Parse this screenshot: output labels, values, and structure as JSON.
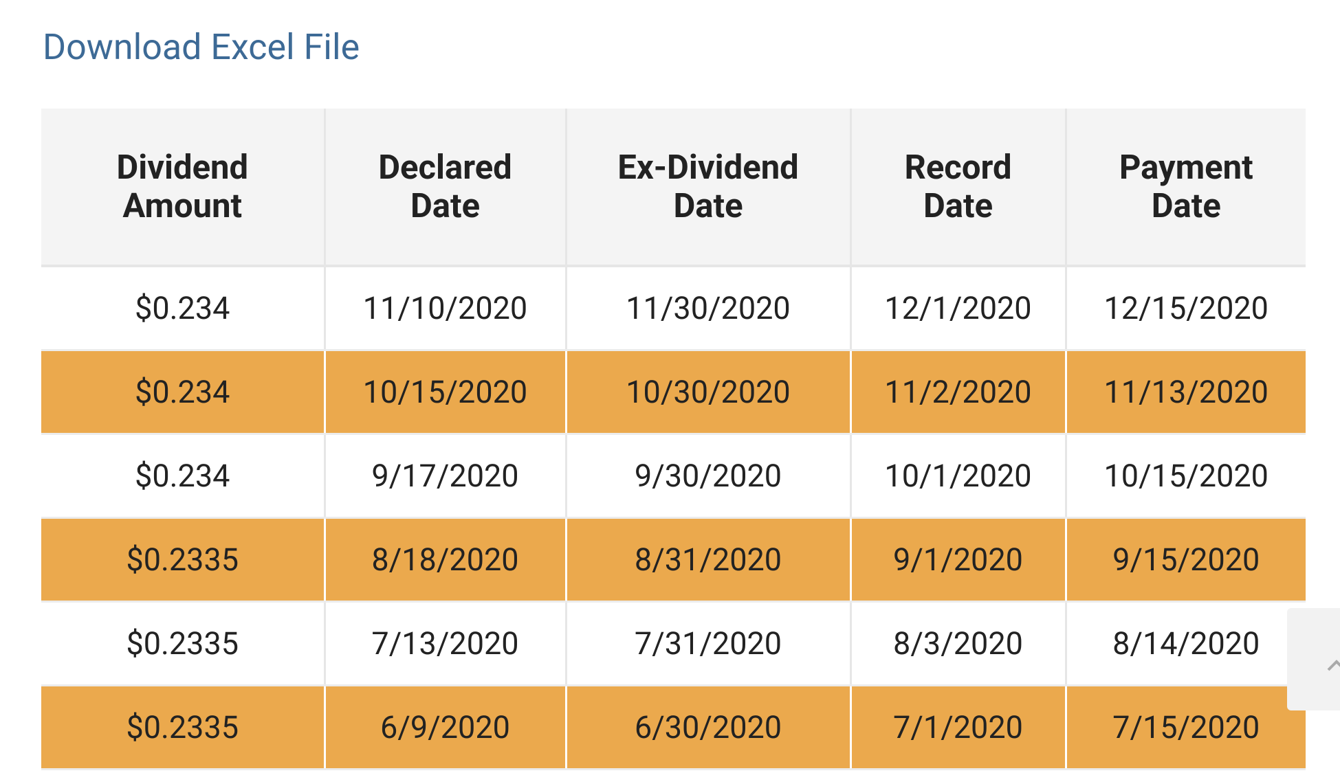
{
  "link": {
    "text": "Download Excel File"
  },
  "table": {
    "header": [
      [
        "Dividend",
        "Amount"
      ],
      [
        "Declared",
        "Date"
      ],
      [
        "Ex-Dividend",
        "Date"
      ],
      [
        "Record",
        "Date"
      ],
      [
        "Payment",
        "Date"
      ]
    ],
    "rows": [
      [
        "$0.234",
        "11/10/2020",
        "11/30/2020",
        "12/1/2020",
        "12/15/2020"
      ],
      [
        "$0.234",
        "10/15/2020",
        "10/30/2020",
        "11/2/2020",
        "11/13/2020"
      ],
      [
        "$0.234",
        "9/17/2020",
        "9/30/2020",
        "10/1/2020",
        "10/15/2020"
      ],
      [
        "$0.2335",
        "8/18/2020",
        "8/31/2020",
        "9/1/2020",
        "9/15/2020"
      ],
      [
        "$0.2335",
        "7/13/2020",
        "7/31/2020",
        "8/3/2020",
        "8/14/2020"
      ],
      [
        "$0.2335",
        "6/9/2020",
        "6/30/2020",
        "7/1/2020",
        "7/15/2020"
      ]
    ]
  }
}
